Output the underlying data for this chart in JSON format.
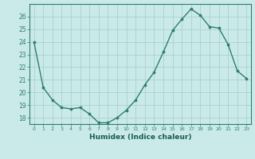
{
  "x": [
    0,
    1,
    2,
    3,
    4,
    5,
    6,
    7,
    8,
    9,
    10,
    11,
    12,
    13,
    14,
    15,
    16,
    17,
    18,
    19,
    20,
    21,
    22,
    23
  ],
  "y": [
    24.0,
    20.4,
    19.4,
    18.8,
    18.7,
    18.8,
    18.3,
    17.6,
    17.6,
    18.0,
    18.6,
    19.4,
    20.6,
    21.6,
    23.2,
    24.9,
    25.8,
    26.6,
    26.1,
    25.2,
    25.1,
    23.8,
    21.7,
    21.1
  ],
  "line_color": "#2e7d6e",
  "marker": "o",
  "markersize": 2.2,
  "linewidth": 1.0,
  "xlabel": "Humidex (Indice chaleur)",
  "xlabel_fontsize": 6.5,
  "ytick_labels": [
    "18",
    "19",
    "20",
    "21",
    "22",
    "23",
    "24",
    "25",
    "26"
  ],
  "ytick_vals": [
    18,
    19,
    20,
    21,
    22,
    23,
    24,
    25,
    26
  ],
  "xlim": [
    -0.5,
    23.5
  ],
  "ylim": [
    17.5,
    27.0
  ],
  "bg_color": "#caeaea",
  "grid_color": "#aacfcf",
  "tick_color": "#2e7d6e",
  "label_color": "#1a5c52",
  "spine_color": "#2e7d6e"
}
